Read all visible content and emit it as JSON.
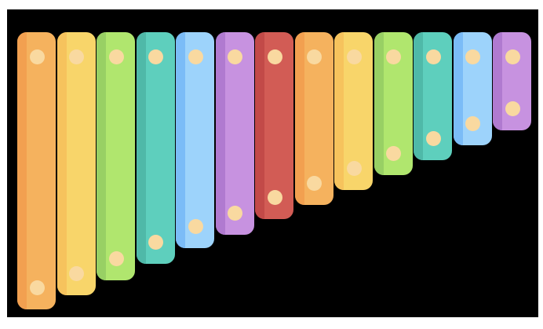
{
  "xylophone": {
    "background": "#000000",
    "dot_color": "#f9d9a0",
    "bars": [
      {
        "name": "bar-1",
        "color": "#f5b25e",
        "shade": "#f2a050",
        "length": 353
      },
      {
        "name": "bar-2",
        "color": "#f8d56a",
        "shade": "#f6c35d",
        "length": 335
      },
      {
        "name": "bar-3",
        "color": "#b0e66e",
        "shade": "#98d064",
        "length": 316
      },
      {
        "name": "bar-4",
        "color": "#5ecfbd",
        "shade": "#4fb9a8",
        "length": 295
      },
      {
        "name": "bar-5",
        "color": "#9dd3fb",
        "shade": "#7bbcf7",
        "length": 275
      },
      {
        "name": "bar-6",
        "color": "#c792e0",
        "shade": "#b07ad0",
        "length": 258
      },
      {
        "name": "bar-7",
        "color": "#d25c55",
        "shade": "#c24a48",
        "length": 238
      },
      {
        "name": "bar-8",
        "color": "#f5b25e",
        "shade": "#f2a050",
        "length": 220
      },
      {
        "name": "bar-9",
        "color": "#f8d56a",
        "shade": "#f6c35d",
        "length": 201
      },
      {
        "name": "bar-10",
        "color": "#b0e66e",
        "shade": "#98d064",
        "length": 182
      },
      {
        "name": "bar-11",
        "color": "#5ecfbd",
        "shade": "#4fb9a8",
        "length": 163
      },
      {
        "name": "bar-12",
        "color": "#9dd3fb",
        "shade": "#7bbcf7",
        "length": 144
      },
      {
        "name": "bar-13",
        "color": "#c792e0",
        "shade": "#b07ad0",
        "length": 125
      }
    ]
  }
}
